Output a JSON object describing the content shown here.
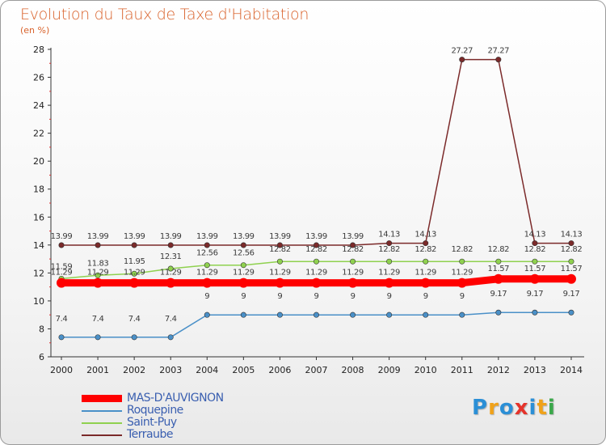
{
  "title": "Evolution du Taux de Taxe d'Habitation",
  "unit_label": "(en %)",
  "logo_text": "Proxiti",
  "chart_data": {
    "type": "line",
    "title": "Evolution du Taux de Taxe d'Habitation",
    "ylabel": "(en %)",
    "xlabel": "",
    "ylim": [
      6,
      28
    ],
    "yticks": [
      6,
      8,
      10,
      12,
      14,
      16,
      18,
      20,
      22,
      24,
      26,
      28
    ],
    "grid": false,
    "legend_position": "bottom-left",
    "categories": [
      "2000",
      "2001",
      "2002",
      "2003",
      "2004",
      "2005",
      "2006",
      "2007",
      "2008",
      "2009",
      "2010",
      "2011",
      "2012",
      "2013",
      "2014"
    ],
    "series": [
      {
        "name": "MAS-D'AUVIGNON",
        "color": "#ff0000",
        "values": [
          11.29,
          11.29,
          11.29,
          11.29,
          11.29,
          11.29,
          11.29,
          11.29,
          11.29,
          11.29,
          11.29,
          11.29,
          11.57,
          11.57,
          11.57
        ],
        "labels": [
          "11.29",
          "11.29",
          "11.29",
          "11.29",
          "11.29",
          "11.29",
          "11.29",
          "11.29",
          "11.29",
          "11.29",
          "11.29",
          "11.29",
          "11.57",
          "11.57",
          "11.57"
        ]
      },
      {
        "name": "Roquepine",
        "color": "#4a90c8",
        "values": [
          7.4,
          7.4,
          7.4,
          7.4,
          9,
          9,
          9,
          9,
          9,
          9,
          9,
          9,
          9.17,
          9.17,
          9.17
        ],
        "labels": [
          "7.4",
          "7.4",
          "7.4",
          "7.4",
          "9",
          "9",
          "9",
          "9",
          "9",
          "9",
          "9",
          "9",
          "9.17",
          "9.17",
          "9.17"
        ]
      },
      {
        "name": "Saint-Puy",
        "color": "#8fd14f",
        "values": [
          11.59,
          11.83,
          11.95,
          12.31,
          12.56,
          12.56,
          12.82,
          12.82,
          12.82,
          12.82,
          12.82,
          12.82,
          12.82,
          12.82,
          12.82
        ],
        "labels": [
          "11.59",
          "11.83",
          "11.95",
          "12.31",
          "12.56",
          "12.56",
          "12.82",
          "12.82",
          "12.82",
          "12.82",
          "12.82",
          "12.82",
          "12.82",
          "12.82",
          "12.82"
        ]
      },
      {
        "name": "Terraube",
        "color": "#7b2a2a",
        "values": [
          13.99,
          13.99,
          13.99,
          13.99,
          13.99,
          13.99,
          13.99,
          13.99,
          13.99,
          14.13,
          14.13,
          27.27,
          27.27,
          14.13,
          14.13
        ],
        "labels": [
          "13.99",
          "13.99",
          "13.99",
          "13.99",
          "13.99",
          "13.99",
          "13.99",
          "13.99",
          "13.99",
          "14.13",
          "14.13",
          "27.27",
          "27.27",
          "14.13",
          "14.13"
        ]
      }
    ]
  }
}
